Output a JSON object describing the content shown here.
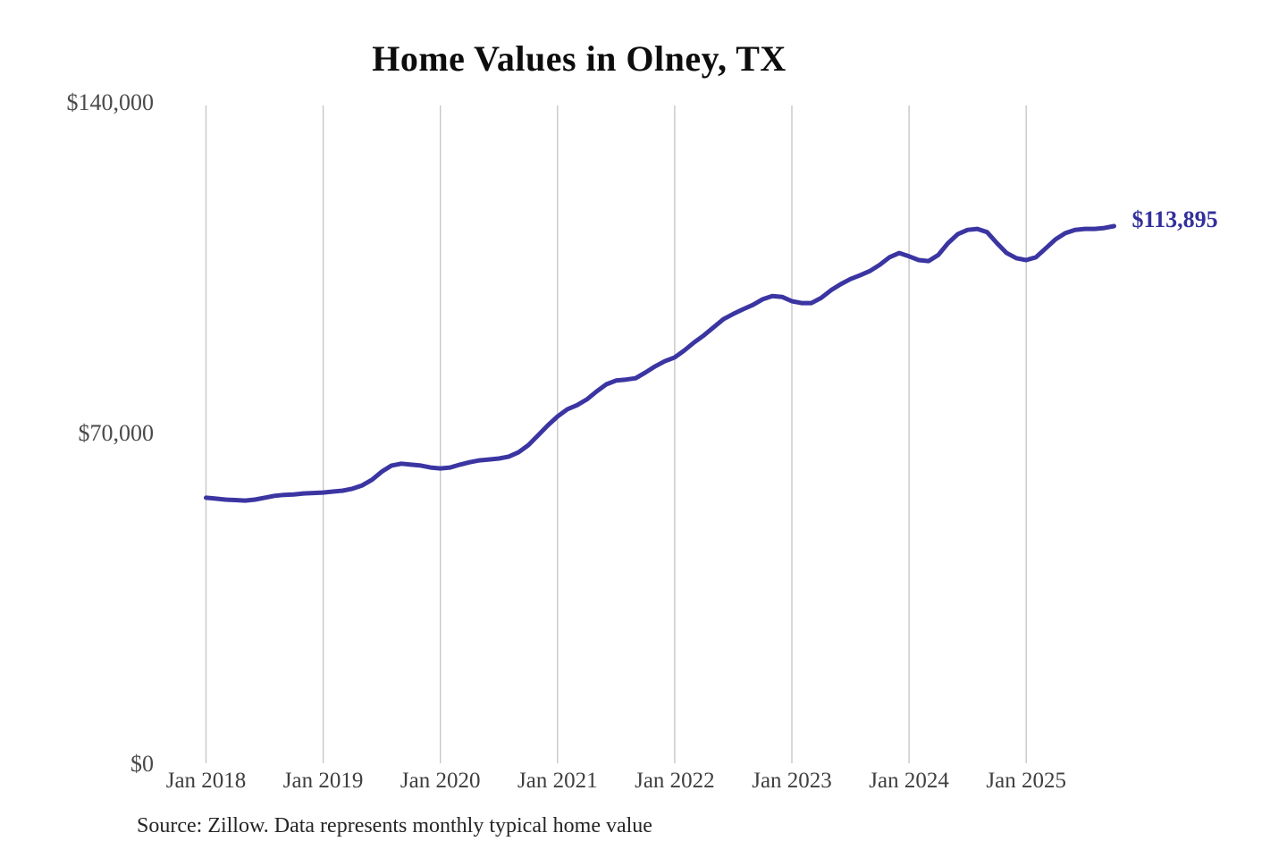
{
  "source": {
    "text": "Source: Zillow. Data represents monthly typical home value"
  },
  "chart_data": {
    "type": "line",
    "title": "Home Values in Olney, TX",
    "xlabel": "",
    "ylabel": "",
    "ylim": [
      0,
      140000
    ],
    "grid": "vertical-only",
    "legend": "none",
    "line_color": "#3b35a2",
    "grid_color": "#c4c4c4",
    "end_label": "$113,895",
    "end_value": 113895,
    "y_ticks": [
      {
        "label": "$140,000",
        "value": 140000
      },
      {
        "label": "$70,000",
        "value": 70000
      },
      {
        "label": "$0",
        "value": 0
      }
    ],
    "x_tick_labels": [
      "Jan 2018",
      "Jan 2019",
      "Jan 2020",
      "Jan 2021",
      "Jan 2022",
      "Jan 2023",
      "Jan 2024",
      "Jan 2025"
    ],
    "x": [
      "2018-01",
      "2018-02",
      "2018-03",
      "2018-04",
      "2018-05",
      "2018-06",
      "2018-07",
      "2018-08",
      "2018-09",
      "2018-10",
      "2018-11",
      "2018-12",
      "2019-01",
      "2019-02",
      "2019-03",
      "2019-04",
      "2019-05",
      "2019-06",
      "2019-07",
      "2019-08",
      "2019-09",
      "2019-10",
      "2019-11",
      "2019-12",
      "2020-01",
      "2020-02",
      "2020-03",
      "2020-04",
      "2020-05",
      "2020-06",
      "2020-07",
      "2020-08",
      "2020-09",
      "2020-10",
      "2020-11",
      "2020-12",
      "2021-01",
      "2021-02",
      "2021-03",
      "2021-04",
      "2021-05",
      "2021-06",
      "2021-07",
      "2021-08",
      "2021-09",
      "2021-10",
      "2021-11",
      "2021-12",
      "2022-01",
      "2022-02",
      "2022-03",
      "2022-04",
      "2022-05",
      "2022-06",
      "2022-07",
      "2022-08",
      "2022-09",
      "2022-10",
      "2022-11",
      "2022-12",
      "2023-01",
      "2023-02",
      "2023-03",
      "2023-04",
      "2023-05",
      "2023-06",
      "2023-07",
      "2023-08",
      "2023-09",
      "2023-10",
      "2023-11",
      "2023-12",
      "2024-01",
      "2024-02",
      "2024-03",
      "2024-04",
      "2024-05",
      "2024-06",
      "2024-07",
      "2024-08",
      "2024-09",
      "2024-10",
      "2024-11",
      "2024-12",
      "2025-01",
      "2025-02",
      "2025-03",
      "2025-04",
      "2025-05",
      "2025-06",
      "2025-07",
      "2025-08",
      "2025-09",
      "2025-10"
    ],
    "values": [
      56400,
      56200,
      56000,
      55900,
      55800,
      56000,
      56400,
      56800,
      57000,
      57100,
      57300,
      57400,
      57500,
      57700,
      57900,
      58300,
      59000,
      60200,
      61900,
      63200,
      63600,
      63400,
      63200,
      62800,
      62600,
      62800,
      63400,
      63900,
      64300,
      64500,
      64700,
      65100,
      66000,
      67500,
      69600,
      71700,
      73600,
      75100,
      76000,
      77200,
      78900,
      80400,
      81200,
      81400,
      81700,
      82900,
      84200,
      85300,
      86100,
      87600,
      89300,
      90800,
      92500,
      94200,
      95300,
      96300,
      97200,
      98400,
      99100,
      98900,
      98000,
      97600,
      97600,
      98700,
      100300,
      101600,
      102700,
      103500,
      104400,
      105700,
      107300,
      108200,
      107500,
      106700,
      106500,
      107800,
      110300,
      112200,
      113100,
      113300,
      112600,
      110300,
      108200,
      107100,
      106700,
      107300,
      109200,
      111100,
      112400,
      113100,
      113300,
      113300,
      113500,
      113895
    ]
  }
}
